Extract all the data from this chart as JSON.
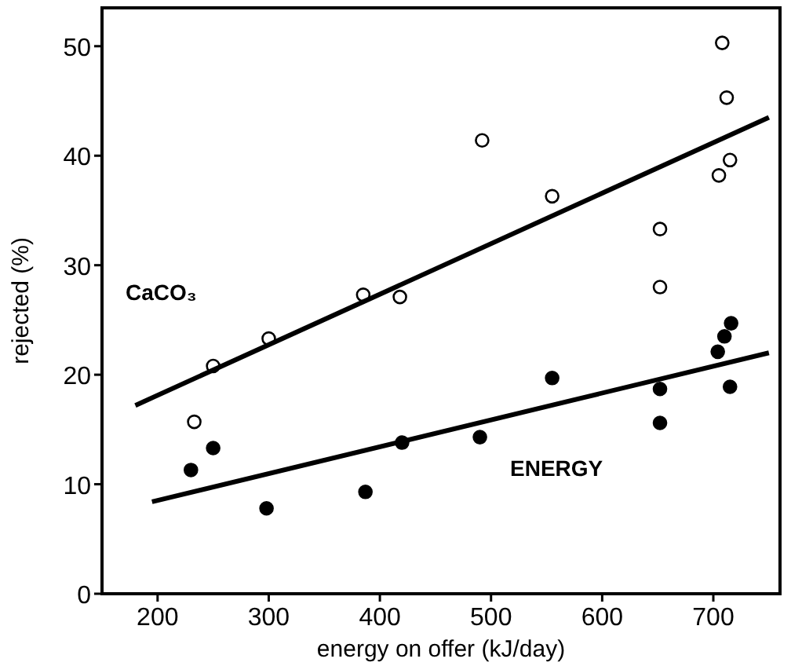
{
  "chart_data": {
    "type": "scatter",
    "xlabel": "energy on offer (kJ/day)",
    "ylabel": "rejected (%)",
    "xlim": [
      150,
      760
    ],
    "ylim": [
      0,
      53.5
    ],
    "xticks": [
      200,
      300,
      400,
      500,
      600,
      700
    ],
    "yticks": [
      0,
      10,
      20,
      30,
      40,
      50
    ],
    "grid": false,
    "marker": "circle",
    "series": [
      {
        "name": "CaCO₃",
        "color": "#000000",
        "x": [
          233,
          250,
          300,
          385,
          418,
          492,
          555,
          652,
          652,
          705,
          708,
          712,
          715
        ],
        "values": [
          15.7,
          20.8,
          23.3,
          27.3,
          27.1,
          41.4,
          36.3,
          33.3,
          28.0,
          38.2,
          50.3,
          45.3,
          39.6
        ]
      },
      {
        "name": "ENERGY",
        "color": "#000000",
        "x": [
          230,
          250,
          298,
          387,
          420,
          490,
          555,
          652,
          652,
          704,
          710,
          716,
          715
        ],
        "values": [
          11.3,
          13.3,
          7.8,
          9.3,
          13.8,
          14.3,
          19.7,
          18.7,
          15.6,
          22.1,
          23.5,
          24.7,
          18.9
        ]
      },
      {
        "type": "line",
        "marker": "none",
        "color": "#000000",
        "x": [
          180,
          750
        ],
        "values": [
          17.2,
          43.5
        ]
      },
      {
        "type": "line",
        "marker": "none",
        "color": "#000000",
        "x": [
          195,
          750
        ],
        "values": [
          8.4,
          22.0
        ]
      }
    ]
  }
}
